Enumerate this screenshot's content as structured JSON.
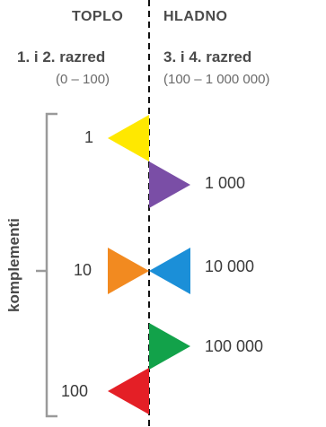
{
  "headers": {
    "left": "TOPLO",
    "right": "HLADNO"
  },
  "columns": {
    "left_title": "1. i 2. razred",
    "left_range": "(0 – 100)",
    "right_title": "3. i 4. razred",
    "right_range": "(100 – 1 000 000)"
  },
  "side_label": "komplementi",
  "items": [
    {
      "label": "1",
      "side": "left",
      "color": "#ffe800"
    },
    {
      "label": "1 000",
      "side": "right",
      "color": "#7a4ea6"
    },
    {
      "label": "10",
      "side": "left",
      "color": "#f28a20"
    },
    {
      "label": "10 000",
      "side": "right",
      "color": "#1b8fd8"
    },
    {
      "label": "100 000",
      "side": "right",
      "color": "#12a24a"
    },
    {
      "label": "100",
      "side": "left",
      "color": "#e41f26"
    }
  ]
}
